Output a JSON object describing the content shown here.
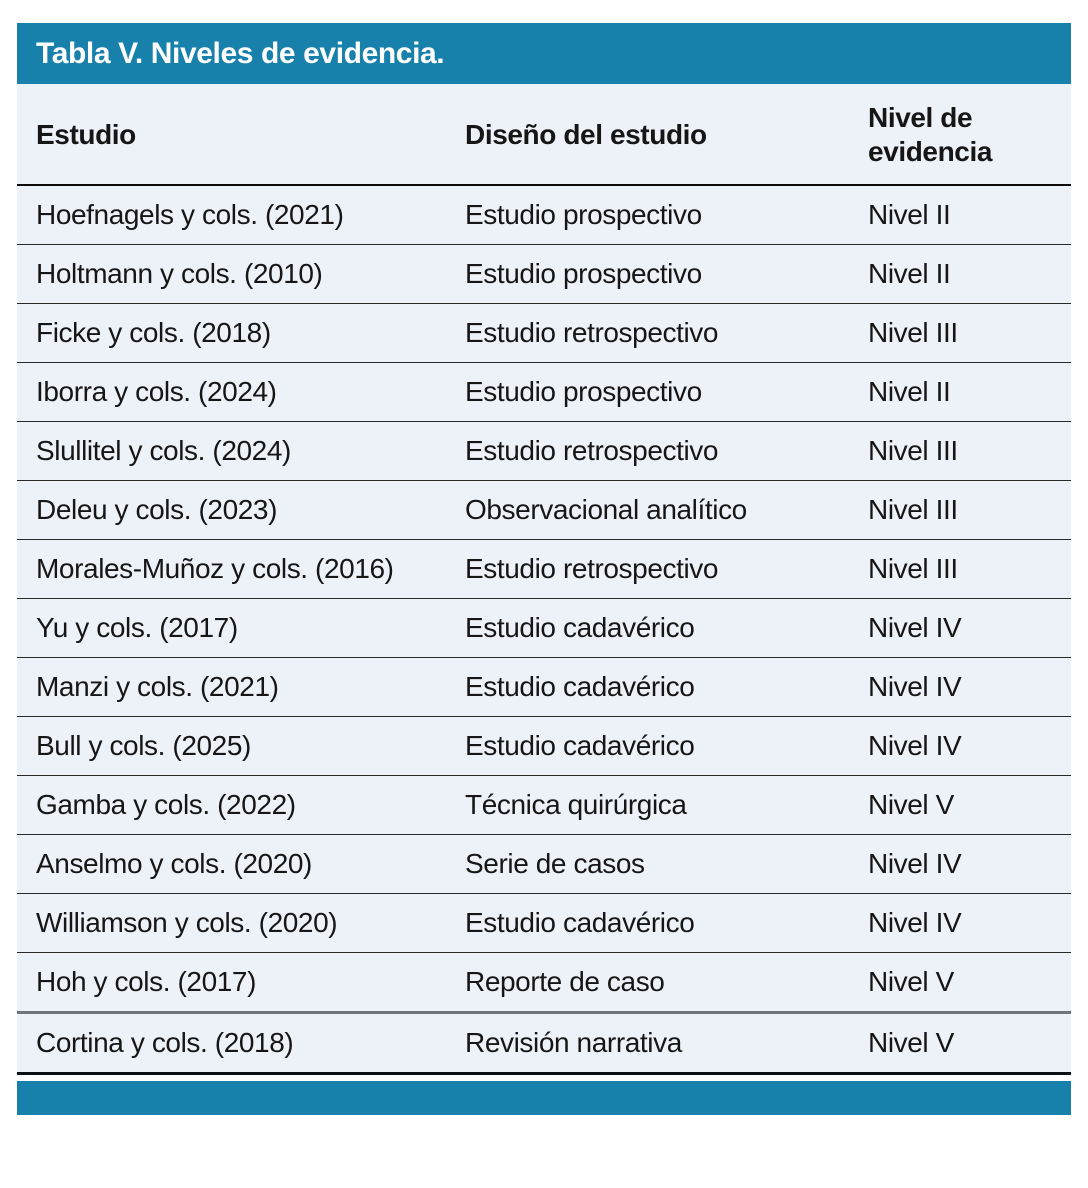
{
  "title_bar": {
    "title": "Tabla V. Niveles de evidencia."
  },
  "table": {
    "columns": {
      "study": "Estudio",
      "design": "Diseño del estudio",
      "level": "Nivel de evidencia"
    },
    "rows": [
      {
        "estudio": "Hoefnagels y cols. (2021)",
        "diseno": "Estudio prospectivo",
        "nivel": "Nivel II"
      },
      {
        "estudio": "Holtmann y cols. (2010)",
        "diseno": "Estudio prospectivo",
        "nivel": "Nivel II"
      },
      {
        "estudio": "Ficke y cols. (2018)",
        "diseno": "Estudio retrospectivo",
        "nivel": "Nivel III"
      },
      {
        "estudio": "Iborra y cols. (2024)",
        "diseno": "Estudio prospectivo",
        "nivel": "Nivel II"
      },
      {
        "estudio": "Slullitel y cols. (2024)",
        "diseno": "Estudio retrospectivo",
        "nivel": "Nivel III"
      },
      {
        "estudio": "Deleu y cols. (2023)",
        "diseno": "Observacional analítico",
        "nivel": "Nivel III"
      },
      {
        "estudio": "Morales-Muñoz y cols. (2016)",
        "diseno": "Estudio retrospectivo",
        "nivel": "Nivel III"
      },
      {
        "estudio": "Yu y cols. (2017)",
        "diseno": "Estudio cadavérico",
        "nivel": "Nivel IV"
      },
      {
        "estudio": "Manzi y cols. (2021)",
        "diseno": "Estudio cadavérico",
        "nivel": "Nivel IV"
      },
      {
        "estudio": "Bull y cols. (2025)",
        "diseno": "Estudio cadavérico",
        "nivel": "Nivel IV"
      },
      {
        "estudio": "Gamba y cols. (2022)",
        "diseno": "Técnica quirúrgica",
        "nivel": "Nivel V"
      },
      {
        "estudio": "Anselmo y cols. (2020)",
        "diseno": "Serie de casos",
        "nivel": "Nivel IV"
      },
      {
        "estudio": "Williamson y cols. (2020)",
        "diseno": "Estudio cadavérico",
        "nivel": "Nivel IV"
      },
      {
        "estudio": "Hoh y cols. (2017)",
        "diseno": "Reporte de caso",
        "nivel": "Nivel V"
      },
      {
        "estudio": "Cortina y cols. (2018)",
        "diseno": "Revisión narrativa",
        "nivel": "Nivel V"
      }
    ]
  },
  "colors": {
    "accent_blue": "#1780ab",
    "table_background": "#edf1f8",
    "text": "#161616",
    "row_rule": "#2b2b2b",
    "thick_rule_gray": "#6f737c",
    "heavy_rule_black": "#0b0b0b"
  }
}
